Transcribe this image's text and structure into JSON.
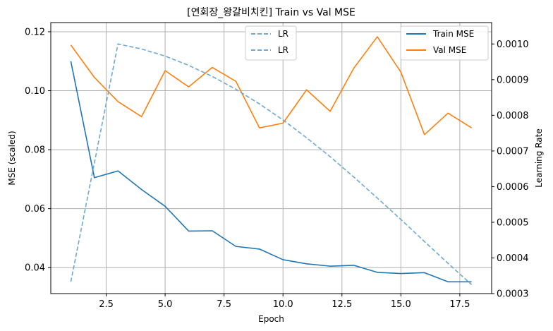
{
  "chart_data": {
    "type": "line",
    "title": "[연회장_왕갈비치킨] Train vs Val MSE",
    "xlabel": "Epoch",
    "ylabel": "MSE (scaled)",
    "y2label": "Learning Rate",
    "x": [
      1,
      2,
      3,
      4,
      5,
      6,
      7,
      8,
      9,
      10,
      11,
      12,
      13,
      14,
      15,
      16,
      17,
      18
    ],
    "xlim": [
      0.15,
      18.85
    ],
    "ylim": [
      0.0312,
      0.1231
    ],
    "y2lim": [
      0.0003,
      0.00106
    ],
    "xticks": [
      2.5,
      5.0,
      7.5,
      10.0,
      12.5,
      15.0,
      17.5
    ],
    "xtick_labels": [
      "2.5",
      "5.0",
      "7.5",
      "10.0",
      "12.5",
      "15.0",
      "17.5"
    ],
    "yticks": [
      0.04,
      0.06,
      0.08,
      0.1,
      0.12
    ],
    "ytick_labels": [
      "0.04",
      "0.06",
      "0.08",
      "0.10",
      "0.12"
    ],
    "y2ticks": [
      0.0003,
      0.0004,
      0.0005,
      0.0006,
      0.0007,
      0.0008,
      0.0009,
      0.001
    ],
    "y2tick_labels": [
      "0.0003",
      "0.0004",
      "0.0005",
      "0.0006",
      "0.0007",
      "0.0008",
      "0.0009",
      "0.0010"
    ],
    "grid": true,
    "series": [
      {
        "name": "Train MSE",
        "axis": "left",
        "color": "#1f77b4",
        "dash": false,
        "values": [
          0.11,
          0.0705,
          0.0728,
          0.0665,
          0.0608,
          0.0524,
          0.0525,
          0.0472,
          0.0463,
          0.0427,
          0.0413,
          0.0405,
          0.0408,
          0.0384,
          0.038,
          0.0383,
          0.0352,
          0.0352
        ]
      },
      {
        "name": "Val MSE",
        "axis": "left",
        "color": "#ff7f0e",
        "dash": false,
        "values": [
          0.1155,
          0.1045,
          0.0963,
          0.0912,
          0.1068,
          0.1013,
          0.1079,
          0.1032,
          0.0874,
          0.089,
          0.1003,
          0.093,
          0.1076,
          0.1183,
          0.1063,
          0.0851,
          0.0924,
          0.0874
        ]
      },
      {
        "name": "LR",
        "axis": "right",
        "color": "#6fa8d4",
        "dash": true,
        "values": [
          0.000333,
          0.000667,
          0.001,
          0.000986,
          0.000966,
          0.00094,
          0.000909,
          0.000873,
          0.000832,
          0.000787,
          0.000737,
          0.000684,
          0.000627,
          0.000568,
          0.000508,
          0.000446,
          0.000385,
          0.000325
        ]
      }
    ],
    "legends": [
      {
        "placement": "upper-center",
        "entries": [
          "LR",
          "LR"
        ]
      },
      {
        "placement": "upper-right",
        "entries": [
          "Train MSE",
          "Val MSE"
        ]
      }
    ]
  }
}
